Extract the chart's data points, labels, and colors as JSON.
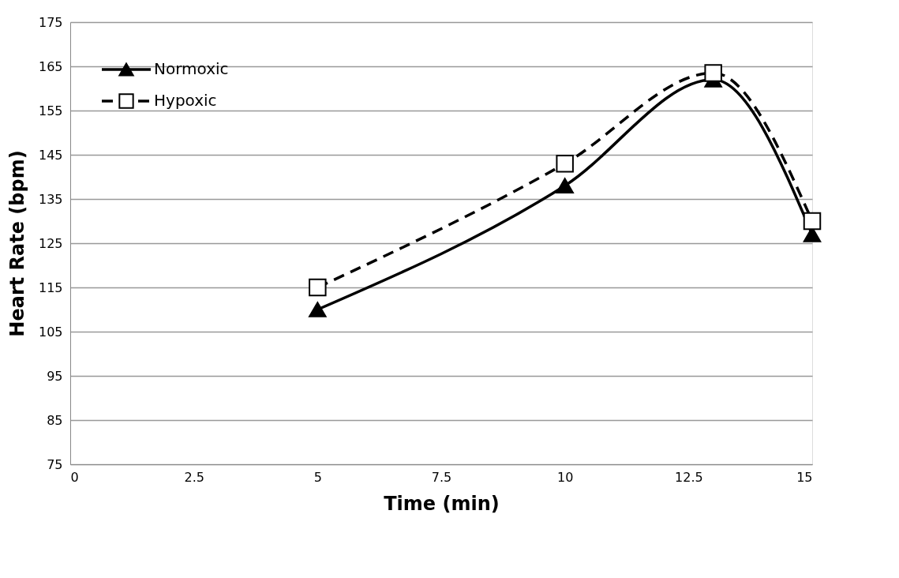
{
  "chart_data": {
    "type": "line",
    "xlabel": "Time (min)",
    "ylabel": "Heart Rate (bpm)",
    "xlim": [
      0,
      15
    ],
    "xticks": [
      0,
      2.5,
      5,
      7.5,
      10,
      12.5,
      15
    ],
    "ylim": [
      75,
      175
    ],
    "yticks": [
      75,
      85,
      95,
      105,
      115,
      125,
      135,
      145,
      155,
      165,
      175
    ],
    "grid": "y",
    "legend": "top left",
    "series": [
      {
        "name": "Normoxic",
        "color": "#000000",
        "x": [
          5,
          10,
          13,
          15
        ],
        "values": [
          110,
          138,
          162,
          127
        ],
        "marker": "triangle",
        "line_style": "solid"
      },
      {
        "name": "Hypoxic",
        "color": "#000000",
        "x": [
          5,
          10,
          13,
          15
        ],
        "values": [
          115,
          143,
          163.5,
          130
        ],
        "marker": "square",
        "line_style": "dashed"
      }
    ]
  }
}
